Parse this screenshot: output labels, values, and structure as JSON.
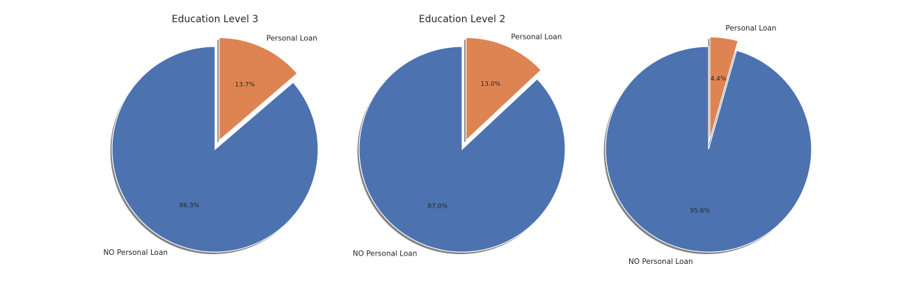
{
  "colors": {
    "no_loan": "#4c72b0",
    "loan": "#dd8452",
    "shadow": "#6e6e6e",
    "background": "#ffffff"
  },
  "chart_data": [
    {
      "type": "pie",
      "title": "Education Level 3",
      "labels": [
        "NO Personal Loan",
        "Personal Loan"
      ],
      "values": [
        86.3,
        13.7
      ],
      "value_labels": [
        "86.3%",
        "13.7%"
      ],
      "exploded": [
        false,
        true
      ],
      "shadow": true,
      "start_angle_deg": 90
    },
    {
      "type": "pie",
      "title": "Education Level 2",
      "labels": [
        "NO Personal Loan",
        "Personal Loan"
      ],
      "values": [
        87.0,
        13.0
      ],
      "value_labels": [
        "87.0%",
        "13.0%"
      ],
      "exploded": [
        false,
        true
      ],
      "shadow": true,
      "start_angle_deg": 90
    },
    {
      "type": "pie",
      "title": "",
      "labels": [
        "NO Personal Loan",
        "Personal Loan"
      ],
      "values": [
        95.6,
        4.4
      ],
      "value_labels": [
        "95.6%",
        "4.4%"
      ],
      "exploded": [
        false,
        true
      ],
      "shadow": true,
      "start_angle_deg": 90
    }
  ]
}
